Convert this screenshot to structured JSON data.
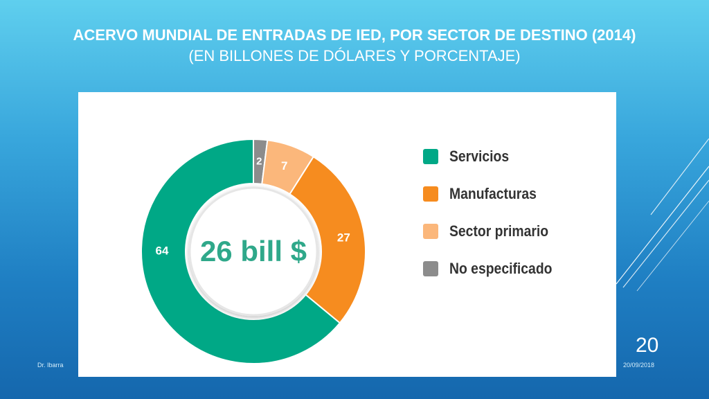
{
  "title": {
    "line1": "ACERVO MUNDIAL DE ENTRADAS DE IED, POR SECTOR DE DESTINO (2014)",
    "line2": "(EN BILLONES DE DÓLARES Y PORCENTAJE)"
  },
  "chart_data": {
    "type": "pie",
    "variant": "donut",
    "center_label": "26 bill $",
    "categories": [
      "Servicios",
      "Manufacturas",
      "Sector primario",
      "No especificado"
    ],
    "values": [
      64,
      27,
      7,
      2
    ],
    "colors": [
      "#00a886",
      "#f68c1f",
      "#fbb77b",
      "#8c8c8c"
    ],
    "legend_position": "right"
  },
  "footer": {
    "author": "Dr. Ibarra",
    "date": "20/09/2018",
    "page": "20"
  }
}
